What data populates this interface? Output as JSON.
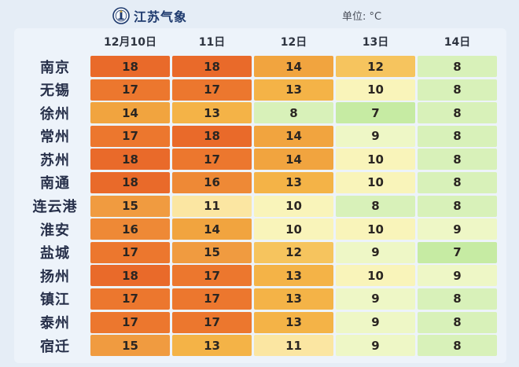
{
  "header": {
    "brand": "江苏气象",
    "unit": "单位: °C"
  },
  "chart_data": {
    "type": "heatmap",
    "columns": [
      "12月10日",
      "11日",
      "12日",
      "13日",
      "14日"
    ],
    "rows": [
      "南京",
      "无锡",
      "徐州",
      "常州",
      "苏州",
      "南通",
      "连云港",
      "淮安",
      "盐城",
      "扬州",
      "镇江",
      "泰州",
      "宿迁"
    ],
    "values": [
      [
        18,
        18,
        14,
        12,
        8
      ],
      [
        17,
        17,
        13,
        10,
        8
      ],
      [
        14,
        13,
        8,
        7,
        8
      ],
      [
        17,
        18,
        14,
        9,
        8
      ],
      [
        18,
        17,
        14,
        10,
        8
      ],
      [
        18,
        16,
        13,
        10,
        8
      ],
      [
        15,
        11,
        10,
        8,
        8
      ],
      [
        16,
        14,
        10,
        10,
        9
      ],
      [
        17,
        15,
        12,
        9,
        7
      ],
      [
        18,
        17,
        13,
        10,
        9
      ],
      [
        17,
        17,
        13,
        9,
        8
      ],
      [
        17,
        17,
        13,
        9,
        8
      ],
      [
        15,
        13,
        11,
        9,
        8
      ]
    ],
    "colors": {
      "7": "#C6EBA3",
      "8": "#D8F1B9",
      "9": "#EEF7C6",
      "10": "#F9F4BA",
      "11": "#FBE6A2",
      "12": "#F6C45E",
      "13": "#F4B347",
      "14": "#F1A43F",
      "15": "#F09B40",
      "16": "#EE8936",
      "17": "#EC772E",
      "18": "#E96A2A"
    }
  }
}
